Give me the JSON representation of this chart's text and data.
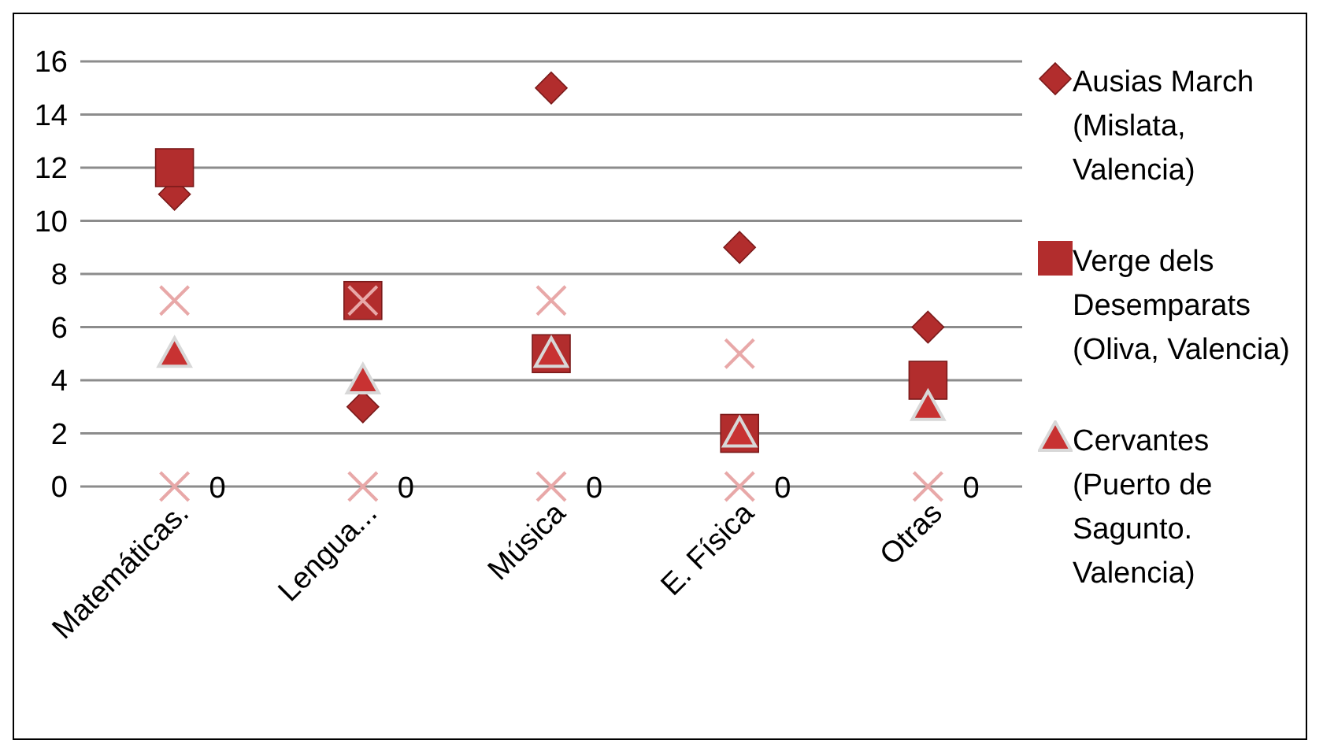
{
  "chart_data": {
    "type": "scatter",
    "categories": [
      "Matemáticas.",
      "Lengua...",
      "Música",
      "E. Física",
      "Otras"
    ],
    "series": [
      {
        "name": "Ausias March (Mislata, Valencia)",
        "color": "#b22d2d",
        "marker": "diamond",
        "values": [
          11,
          3,
          15,
          9,
          6
        ]
      },
      {
        "name": "Verge dels Desemparats (Oliva, Valencia)",
        "color": "#b22d2d",
        "marker": "square",
        "values": [
          12,
          7,
          5,
          2,
          4
        ]
      },
      {
        "name": "Cervantes (Puerto de Sagunto. Valencia)",
        "color": "#c83232",
        "marker": "triangle",
        "values": [
          5,
          4,
          5,
          2,
          3
        ]
      },
      {
        "color": "#e8a8a8",
        "marker": "cross",
        "values": [
          7,
          7,
          7,
          5,
          null
        ]
      },
      {
        "color": "#e8a8a8",
        "marker": "cross",
        "values": [
          0,
          0,
          0,
          0,
          0
        ],
        "value_labels": [
          "0",
          "0",
          "0",
          "0",
          "0"
        ]
      }
    ],
    "ylim": [
      0,
      16
    ],
    "yticks": [
      0,
      2,
      4,
      6,
      8,
      10,
      12,
      14,
      16
    ],
    "grid": "y",
    "legend": "right"
  }
}
